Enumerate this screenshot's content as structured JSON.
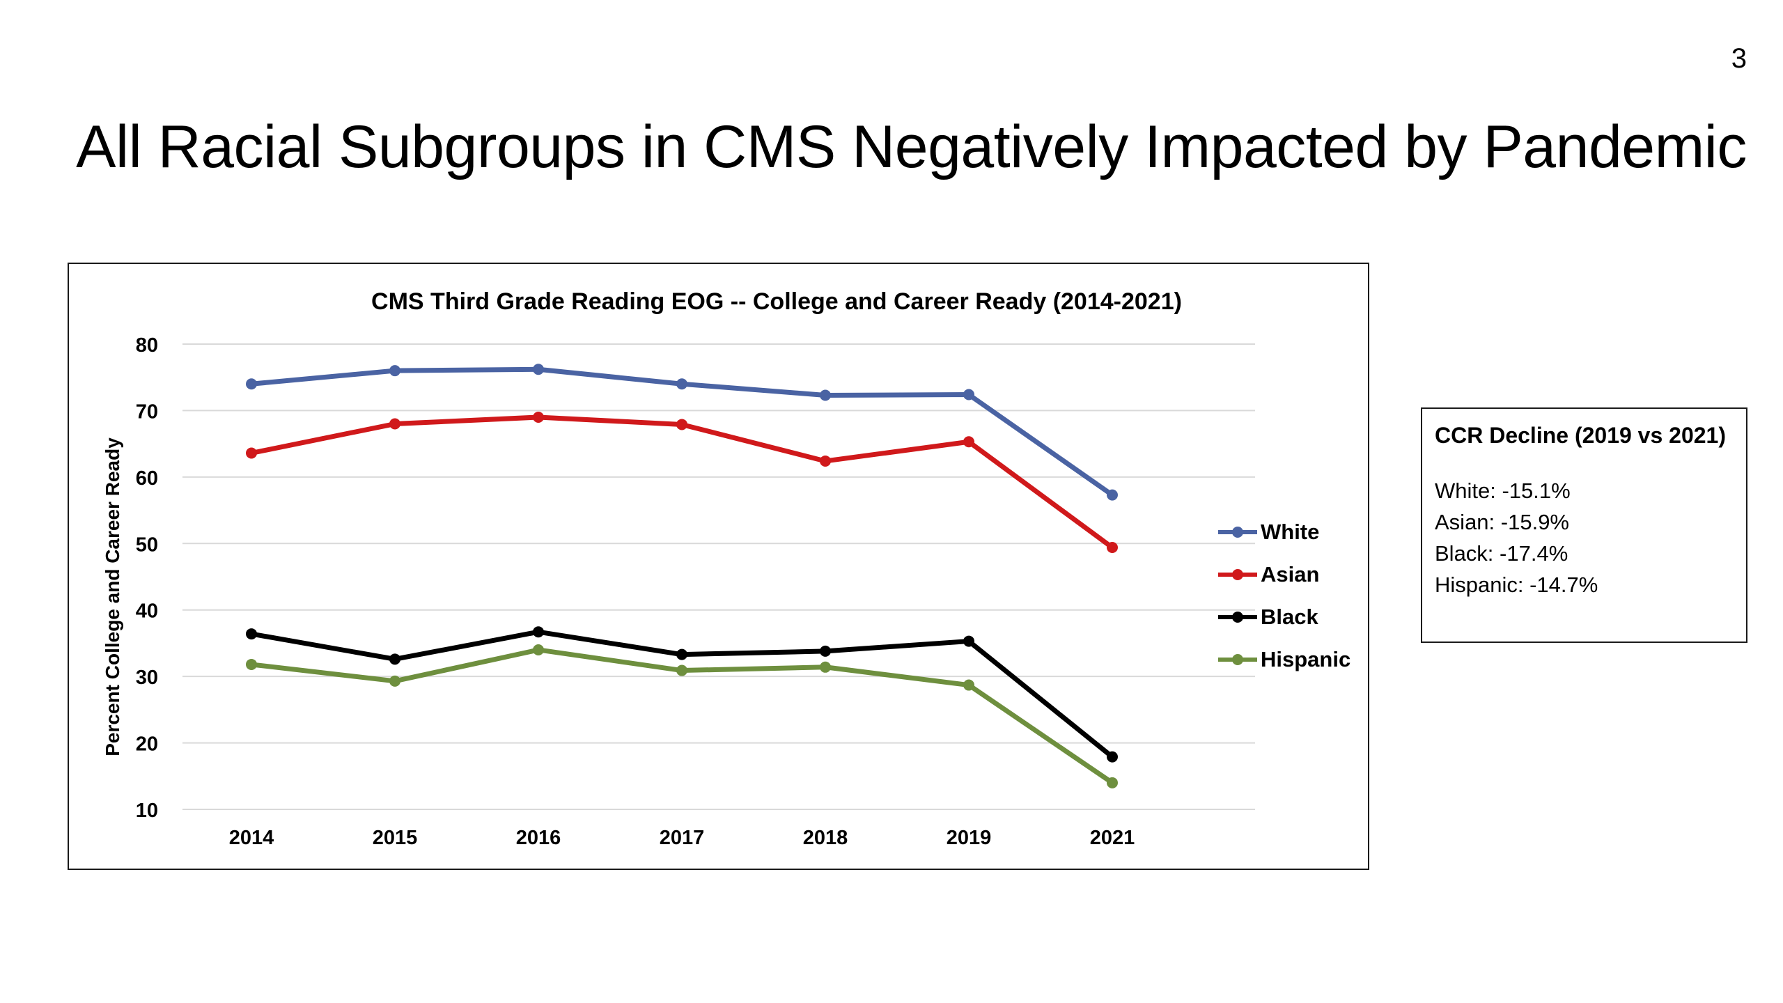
{
  "slide": {
    "number": "3",
    "title": "All Racial Subgroups in CMS Negatively Impacted by Pandemic"
  },
  "note": {
    "heading": "CCR Decline (2019 vs 2021)",
    "lines": [
      "White: -15.1%",
      "Asian: -15.9%",
      "Black: -17.4%",
      "Hispanic: -14.7%"
    ]
  },
  "chart_data": {
    "type": "line",
    "title": "CMS Third Grade Reading EOG -- College and Career Ready (2014-2021)",
    "ylabel": "Percent College and Career Ready",
    "xlabel": "",
    "categories": [
      "2014",
      "2015",
      "2016",
      "2017",
      "2018",
      "2019",
      "2021"
    ],
    "ylim": [
      10,
      80
    ],
    "yticks": [
      10,
      20,
      30,
      40,
      50,
      60,
      70,
      80
    ],
    "grid": true,
    "legend": "right",
    "series": [
      {
        "name": "White",
        "color": "#4a63a3",
        "values": [
          74.0,
          76.0,
          76.2,
          74.0,
          72.3,
          72.4,
          57.3
        ]
      },
      {
        "name": "Asian",
        "color": "#d0191b",
        "values": [
          63.6,
          68.0,
          69.0,
          67.9,
          62.4,
          65.3,
          49.4
        ]
      },
      {
        "name": "Black",
        "color": "#000000",
        "values": [
          36.4,
          32.6,
          36.7,
          33.3,
          33.8,
          35.3,
          17.9
        ]
      },
      {
        "name": "Hispanic",
        "color": "#6e8f3e",
        "values": [
          31.8,
          29.3,
          34.0,
          30.9,
          31.4,
          28.7,
          14.0
        ]
      }
    ]
  }
}
